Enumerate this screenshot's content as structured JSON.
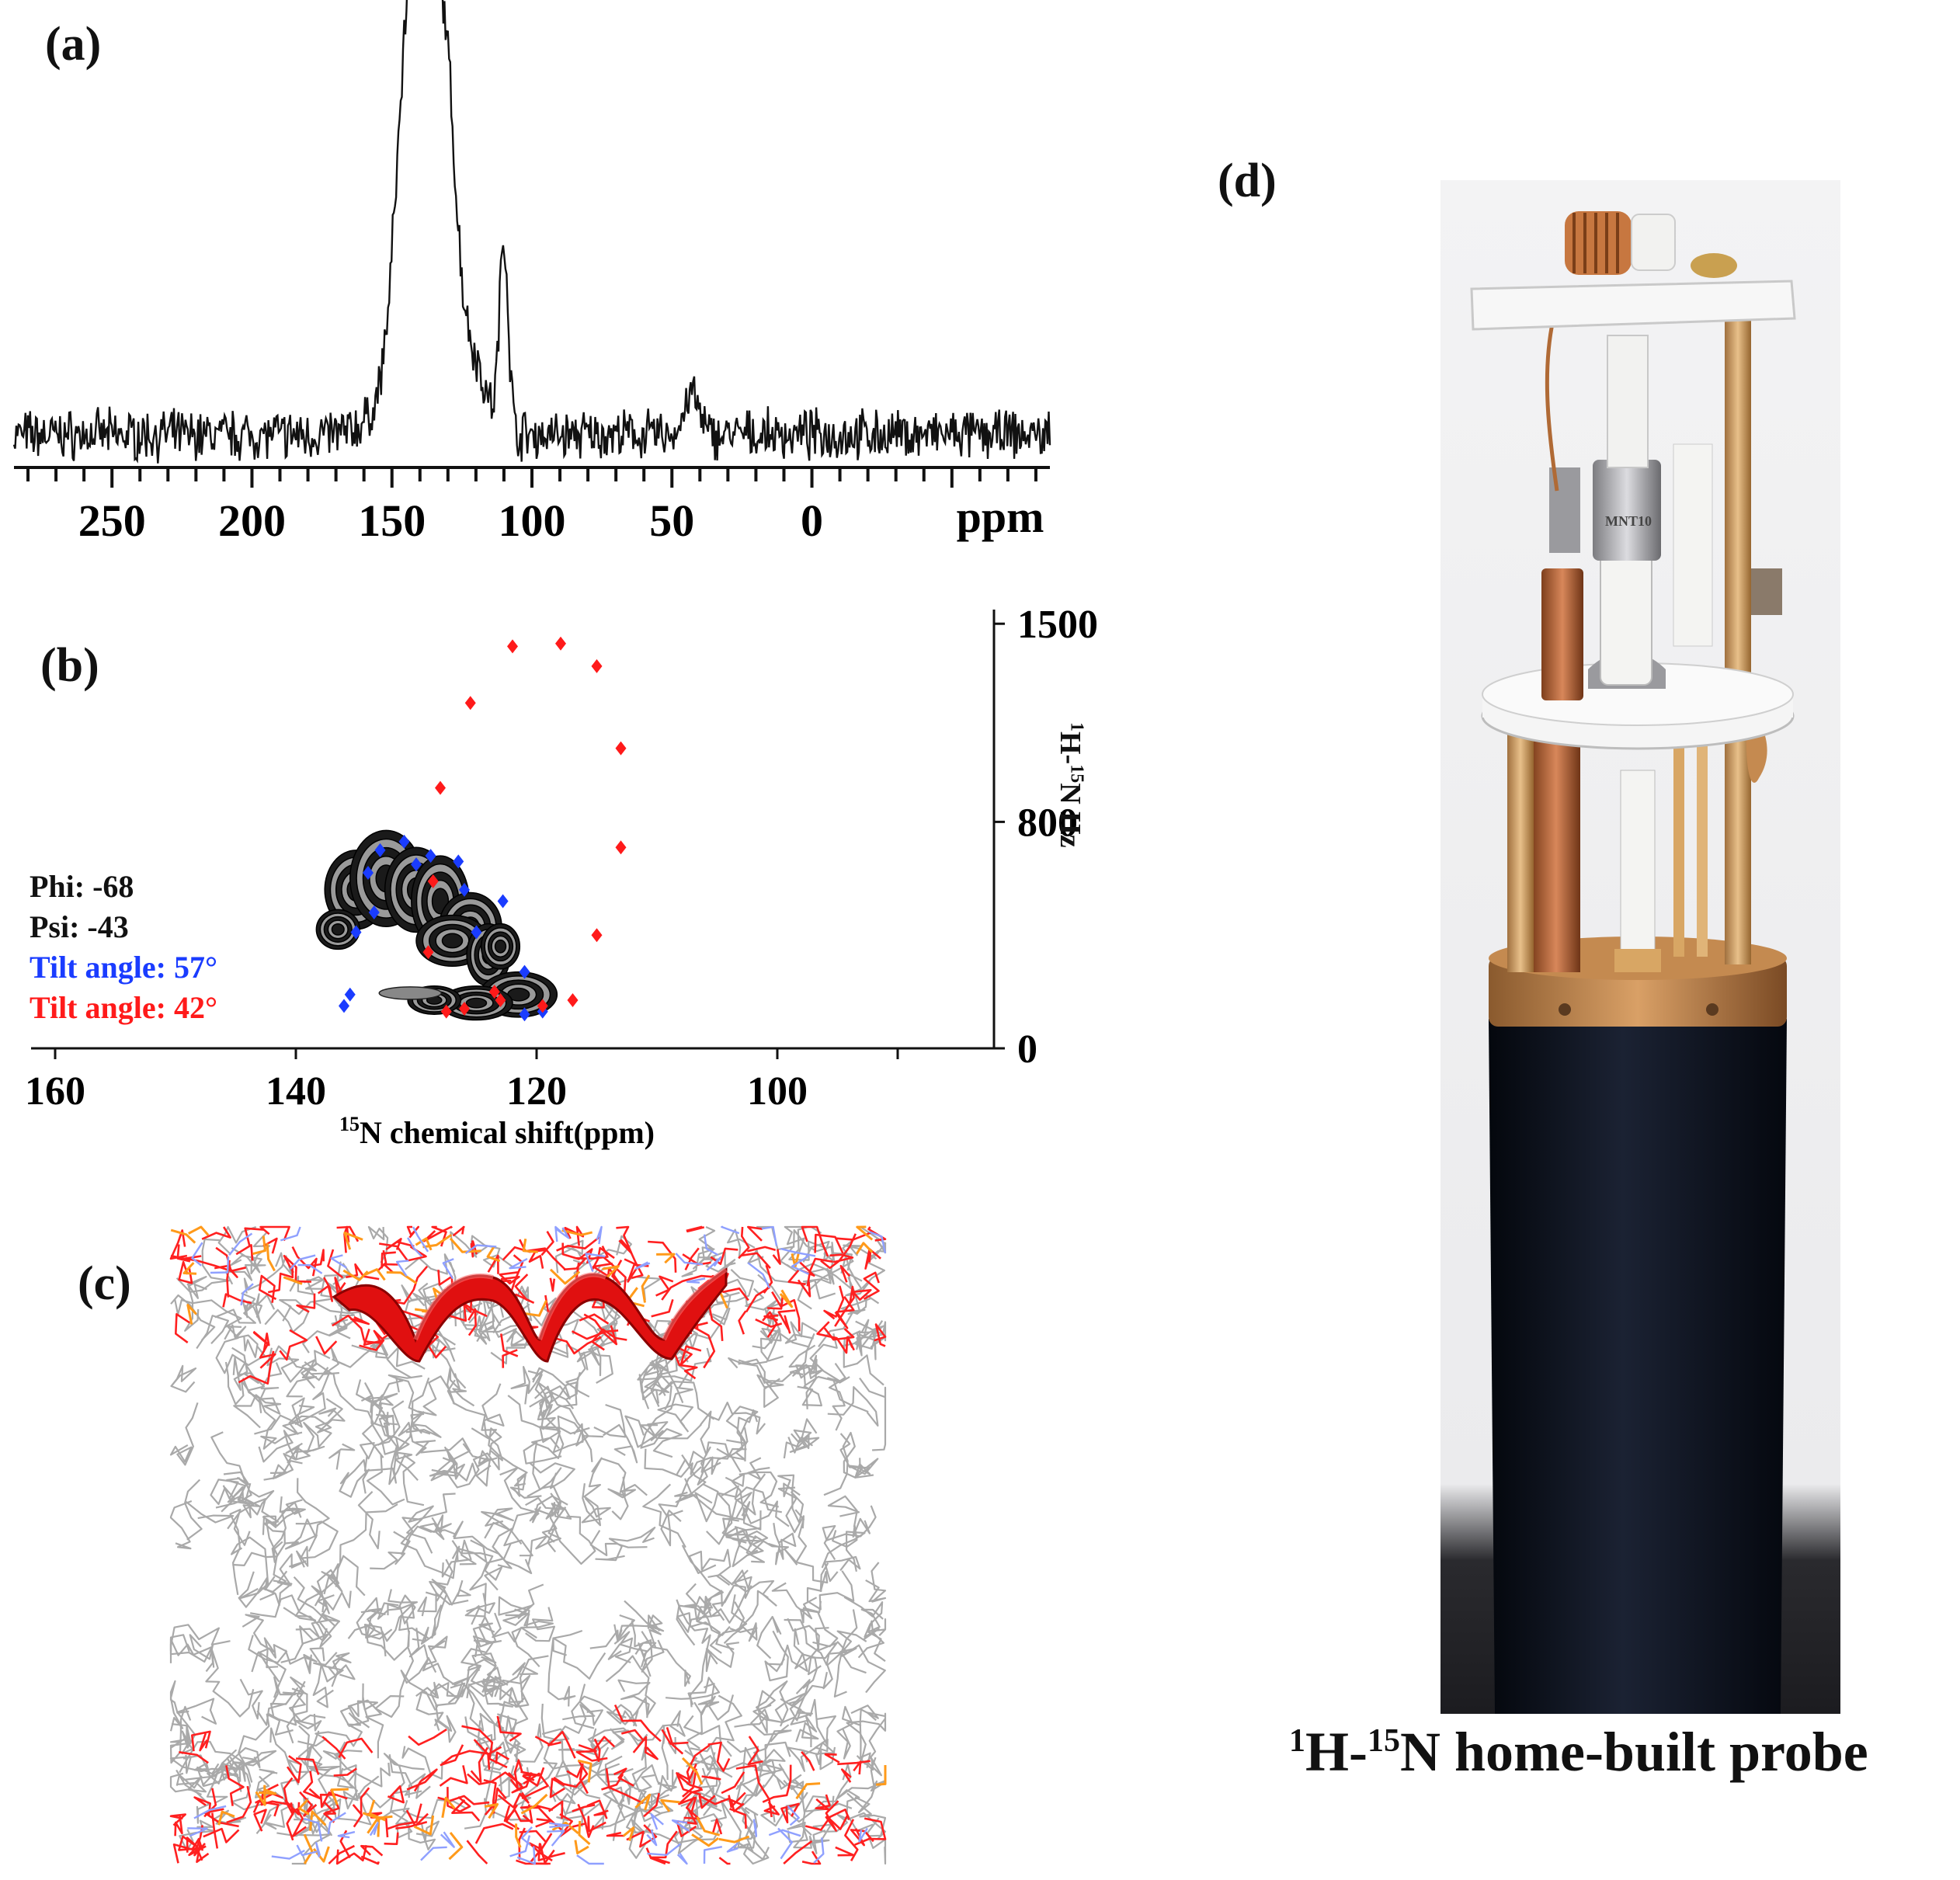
{
  "panels": {
    "a": {
      "label": "(a)"
    },
    "b": {
      "label": "(b)"
    },
    "c": {
      "label": "(c)"
    },
    "d": {
      "label": "(d)"
    }
  },
  "chart_data": [
    {
      "type": "line",
      "panel": "(a)",
      "x_ticks": [
        "250",
        "200",
        "150",
        "100",
        "50",
        "0"
      ],
      "x_tick_values": [
        250,
        200,
        150,
        100,
        50,
        0
      ],
      "xlabel": "ppm",
      "xlim": [
        285,
        -85
      ],
      "x_reversed": true,
      "peaks": [
        {
          "x": 144,
          "y": 0.78
        },
        {
          "x": 138,
          "y": 1.0
        },
        {
          "x": 131,
          "y": 0.73
        },
        {
          "x": 110,
          "y": 0.48
        },
        {
          "x": 43,
          "y": 0.12
        }
      ]
    },
    {
      "type": "scatter",
      "panel": "(b)",
      "xlabel": "15N chemical shift(ppm)",
      "xlabel_sup": "15",
      "xlabel_main": "N chemical shift(ppm)",
      "ylabel_parts": [
        "1",
        "H-",
        "15",
        "N Hz"
      ],
      "x_ticks": [
        "160",
        "140",
        "120",
        "100"
      ],
      "x_tick_values": [
        160,
        140,
        120,
        100
      ],
      "y_ticks": [
        "1500",
        "800",
        "0"
      ],
      "y_tick_values": [
        1500,
        800,
        0
      ],
      "xlim": [
        162,
        82
      ],
      "ylim": [
        0,
        1550
      ],
      "annotations": [
        "Phi: -68",
        "Psi: -43"
      ],
      "series": [
        {
          "name": "Tilt angle: 57°",
          "color": "#1a3cff",
          "points": [
            [
              136,
              150
            ],
            [
              135.5,
              190
            ],
            [
              135,
              410
            ],
            [
              133.5,
              480
            ],
            [
              134,
              620
            ],
            [
              133,
              700
            ],
            [
              131,
              730
            ],
            [
              130,
              650
            ],
            [
              128.8,
              680
            ],
            [
              126.5,
              660
            ],
            [
              126,
              560
            ],
            [
              125,
              410
            ],
            [
              122.8,
              520
            ],
            [
              121,
              270
            ],
            [
              121,
              120
            ],
            [
              119.5,
              130
            ]
          ]
        },
        {
          "name": "Tilt angle: 42°",
          "color": "#ff1a1a",
          "points": [
            [
              122,
              1420
            ],
            [
              118,
              1430
            ],
            [
              115,
              1350
            ],
            [
              125.5,
              1220
            ],
            [
              113,
              1060
            ],
            [
              128,
              920
            ],
            [
              113,
              710
            ],
            [
              115,
              400
            ],
            [
              128.6,
              590
            ],
            [
              129,
              340
            ],
            [
              117,
              170
            ],
            [
              123,
              170
            ],
            [
              126,
              140
            ],
            [
              119.5,
              150
            ],
            [
              127.5,
              130
            ],
            [
              123.5,
              200
            ]
          ]
        }
      ]
    }
  ],
  "figure_d": {
    "caption_parts": [
      "1",
      "H-",
      "15",
      "N home-built probe"
    ],
    "engraving": "MNT10"
  },
  "colors": {
    "spectrum": "#111111",
    "contour": "#1a1a1a",
    "lipid": "#a9a9a9",
    "lipid_oxygen": "#ff2020",
    "lipid_phosphorus": "#ff9a1a",
    "lipid_nitrogen": "#8fa0ff",
    "helix": "#e01010",
    "probe_body": "#0a0f1a",
    "copper": "#c57a45"
  }
}
